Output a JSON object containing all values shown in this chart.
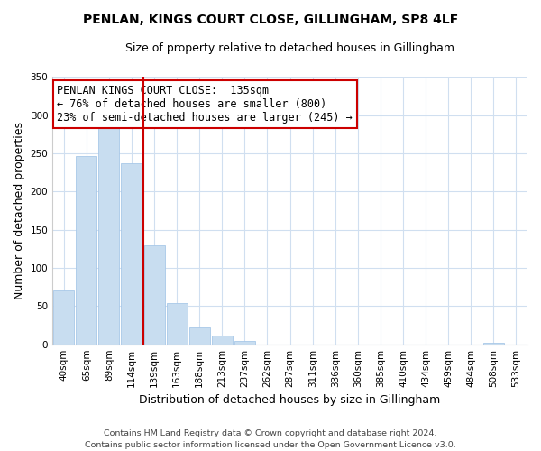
{
  "title": "PENLAN, KINGS COURT CLOSE, GILLINGHAM, SP8 4LF",
  "subtitle": "Size of property relative to detached houses in Gillingham",
  "xlabel": "Distribution of detached houses by size in Gillingham",
  "ylabel": "Number of detached properties",
  "bar_labels": [
    "40sqm",
    "65sqm",
    "89sqm",
    "114sqm",
    "139sqm",
    "163sqm",
    "188sqm",
    "213sqm",
    "237sqm",
    "262sqm",
    "287sqm",
    "311sqm",
    "336sqm",
    "360sqm",
    "385sqm",
    "410sqm",
    "434sqm",
    "459sqm",
    "484sqm",
    "508sqm",
    "533sqm"
  ],
  "bar_values": [
    70,
    246,
    284,
    237,
    130,
    54,
    22,
    11,
    4,
    0,
    0,
    0,
    0,
    0,
    0,
    0,
    0,
    0,
    0,
    2,
    0
  ],
  "bar_color": "#c8ddf0",
  "bar_edge_color": "#a8c8e8",
  "vline_x": 3.5,
  "vline_color": "#cc0000",
  "annotation_title": "PENLAN KINGS COURT CLOSE:  135sqm",
  "annotation_line1": "← 76% of detached houses are smaller (800)",
  "annotation_line2": "23% of semi-detached houses are larger (245) →",
  "annotation_box_color": "#ffffff",
  "annotation_box_edge": "#cc0000",
  "ylim": [
    0,
    350
  ],
  "yticks": [
    0,
    50,
    100,
    150,
    200,
    250,
    300,
    350
  ],
  "footnote1": "Contains HM Land Registry data © Crown copyright and database right 2024.",
  "footnote2": "Contains public sector information licensed under the Open Government Licence v3.0.",
  "title_fontsize": 10,
  "subtitle_fontsize": 9,
  "axis_label_fontsize": 9,
  "tick_fontsize": 7.5,
  "annotation_fontsize": 8.5,
  "footnote_fontsize": 6.8
}
